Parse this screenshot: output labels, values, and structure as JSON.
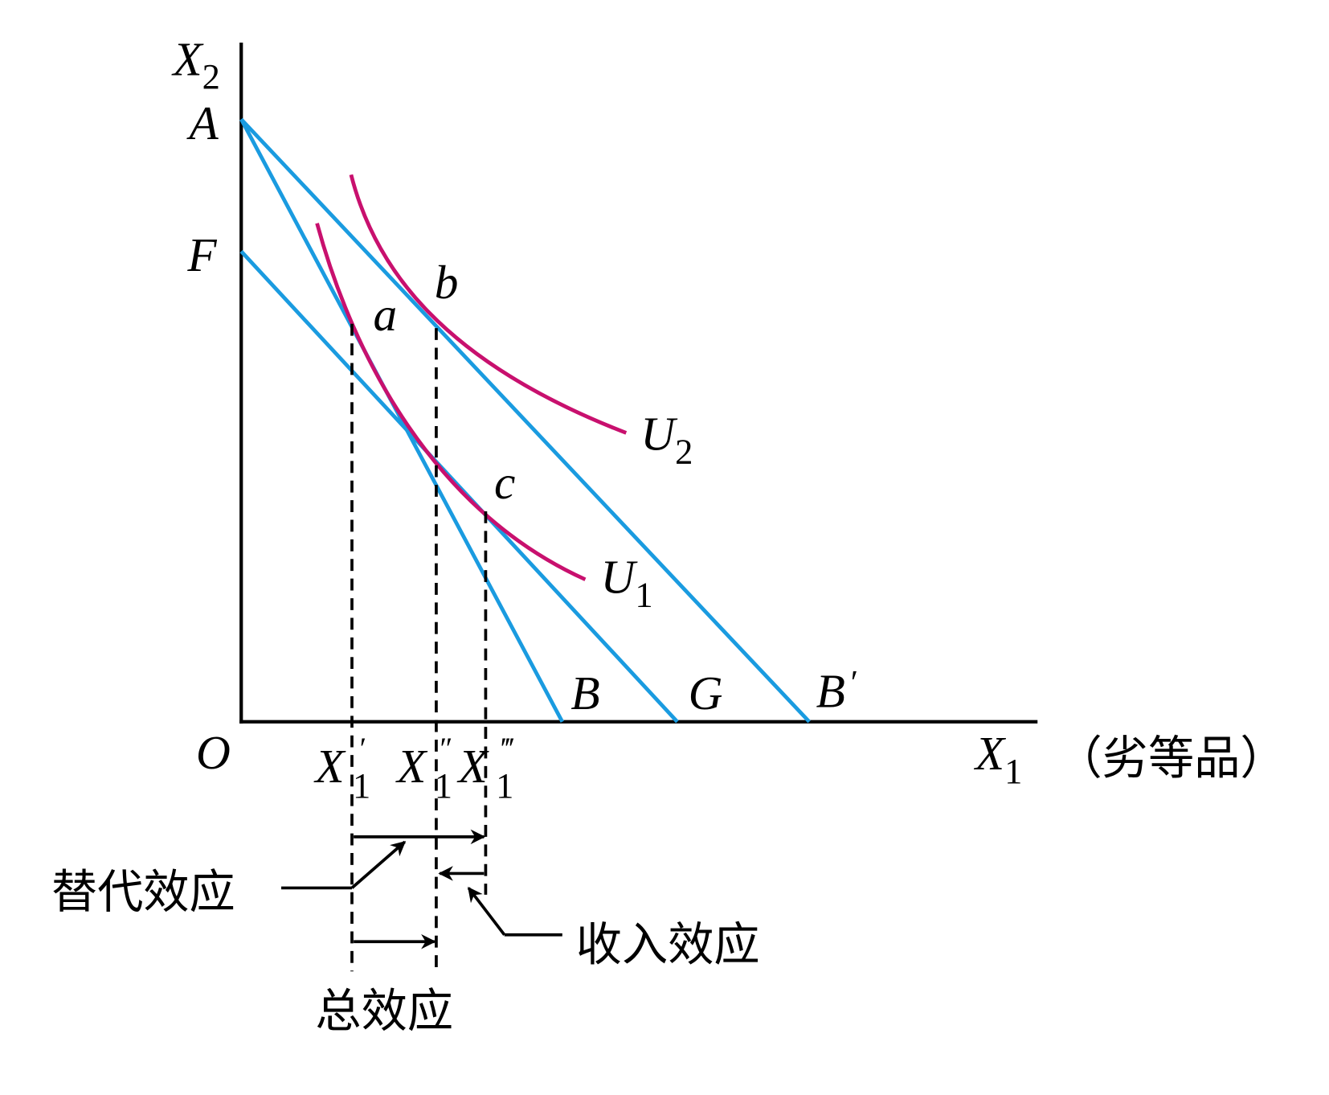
{
  "axes": {
    "y": {
      "main": "X",
      "sub": "2"
    },
    "x": {
      "main": "X",
      "sub": "1"
    },
    "x_note": "（劣等品）",
    "origin": "O"
  },
  "points": {
    "A": "A",
    "F": "F",
    "a": "a",
    "b": "b",
    "c": "c",
    "B": "B",
    "G": "G",
    "B_prime": {
      "main": "B",
      "prime": "′"
    }
  },
  "curves": {
    "U2": {
      "main": "U",
      "sub": "2"
    },
    "U1": {
      "main": "U",
      "sub": "1"
    }
  },
  "x_marks": [
    {
      "main": "X",
      "prime": "′",
      "sub": "1"
    },
    {
      "main": "X",
      "prime": "″",
      "sub": "1"
    },
    {
      "main": "X",
      "prime": "‴",
      "sub": "1"
    }
  ],
  "effects": {
    "substitution": "替代效应",
    "income": "收入效应",
    "total": "总效应"
  }
}
